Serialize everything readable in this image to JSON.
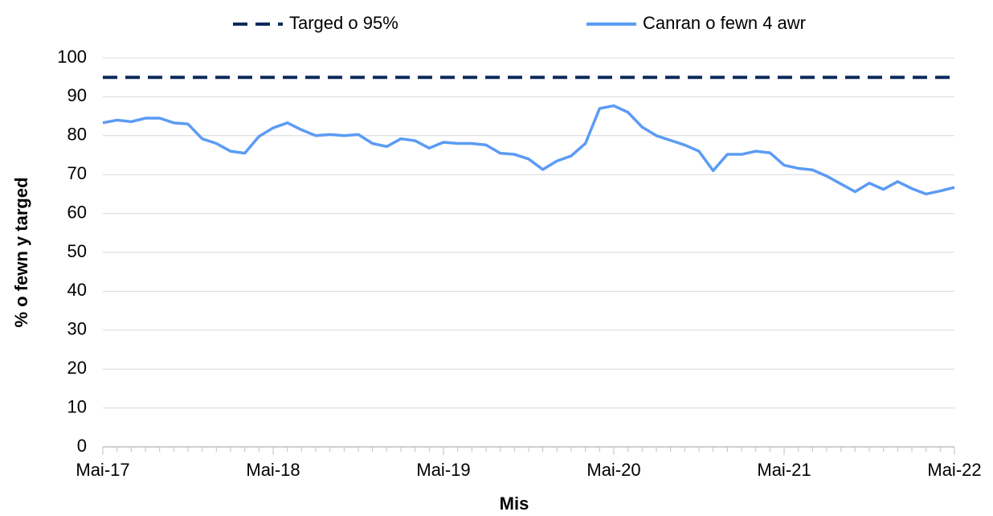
{
  "chart_data": {
    "type": "line",
    "x_label": "Mis",
    "y_label": "% o fewn y targed",
    "categories": [
      "Mai-17",
      null,
      null,
      null,
      null,
      null,
      null,
      null,
      null,
      null,
      null,
      null,
      "Mai-18",
      null,
      null,
      null,
      null,
      null,
      null,
      null,
      null,
      null,
      null,
      null,
      "Mai-19",
      null,
      null,
      null,
      null,
      null,
      null,
      null,
      null,
      null,
      null,
      null,
      "Mai-20",
      null,
      null,
      null,
      null,
      null,
      null,
      null,
      null,
      null,
      null,
      null,
      "Mai-21",
      null,
      null,
      null,
      null,
      null,
      null,
      null,
      null,
      null,
      null,
      null,
      "Mai-22"
    ],
    "series": [
      {
        "name": "Targed o 95%",
        "color": "#0c2a5b",
        "dashed": true,
        "values": [
          95,
          95,
          95,
          95,
          95,
          95,
          95,
          95,
          95,
          95,
          95,
          95,
          95,
          95,
          95,
          95,
          95,
          95,
          95,
          95,
          95,
          95,
          95,
          95,
          95,
          95,
          95,
          95,
          95,
          95,
          95,
          95,
          95,
          95,
          95,
          95,
          95,
          95,
          95,
          95,
          95,
          95,
          95,
          95,
          95,
          95,
          95,
          95,
          95,
          95,
          95,
          95,
          95,
          95,
          95,
          95,
          95,
          95,
          95,
          95,
          95
        ]
      },
      {
        "name": "Canran o fewn 4 awr",
        "color": "#5b9bf5",
        "dashed": false,
        "values": [
          83.3,
          84,
          83.6,
          84.5,
          84.5,
          83.3,
          83,
          79.2,
          78,
          76,
          75.5,
          79.8,
          82,
          83.3,
          81.5,
          80,
          80.3,
          80,
          80.3,
          78,
          77.2,
          79.2,
          78.7,
          76.8,
          78.3,
          78,
          78,
          77.6,
          75.5,
          75.2,
          74,
          71.3,
          73.5,
          74.8,
          78,
          87,
          87.7,
          86,
          82.2,
          80,
          78.8,
          77.6,
          76,
          71,
          75.2,
          75.2,
          76,
          75.6,
          72.4,
          71.6,
          71.2,
          69.6,
          67.6,
          65.6,
          67.8,
          66.2,
          68.2,
          66.4,
          65,
          65.8,
          66.7
        ]
      }
    ],
    "ylim": [
      0,
      100
    ],
    "yticks": [
      0,
      10,
      20,
      30,
      40,
      50,
      60,
      70,
      80,
      90,
      100
    ],
    "grid": true,
    "legend": "top"
  }
}
